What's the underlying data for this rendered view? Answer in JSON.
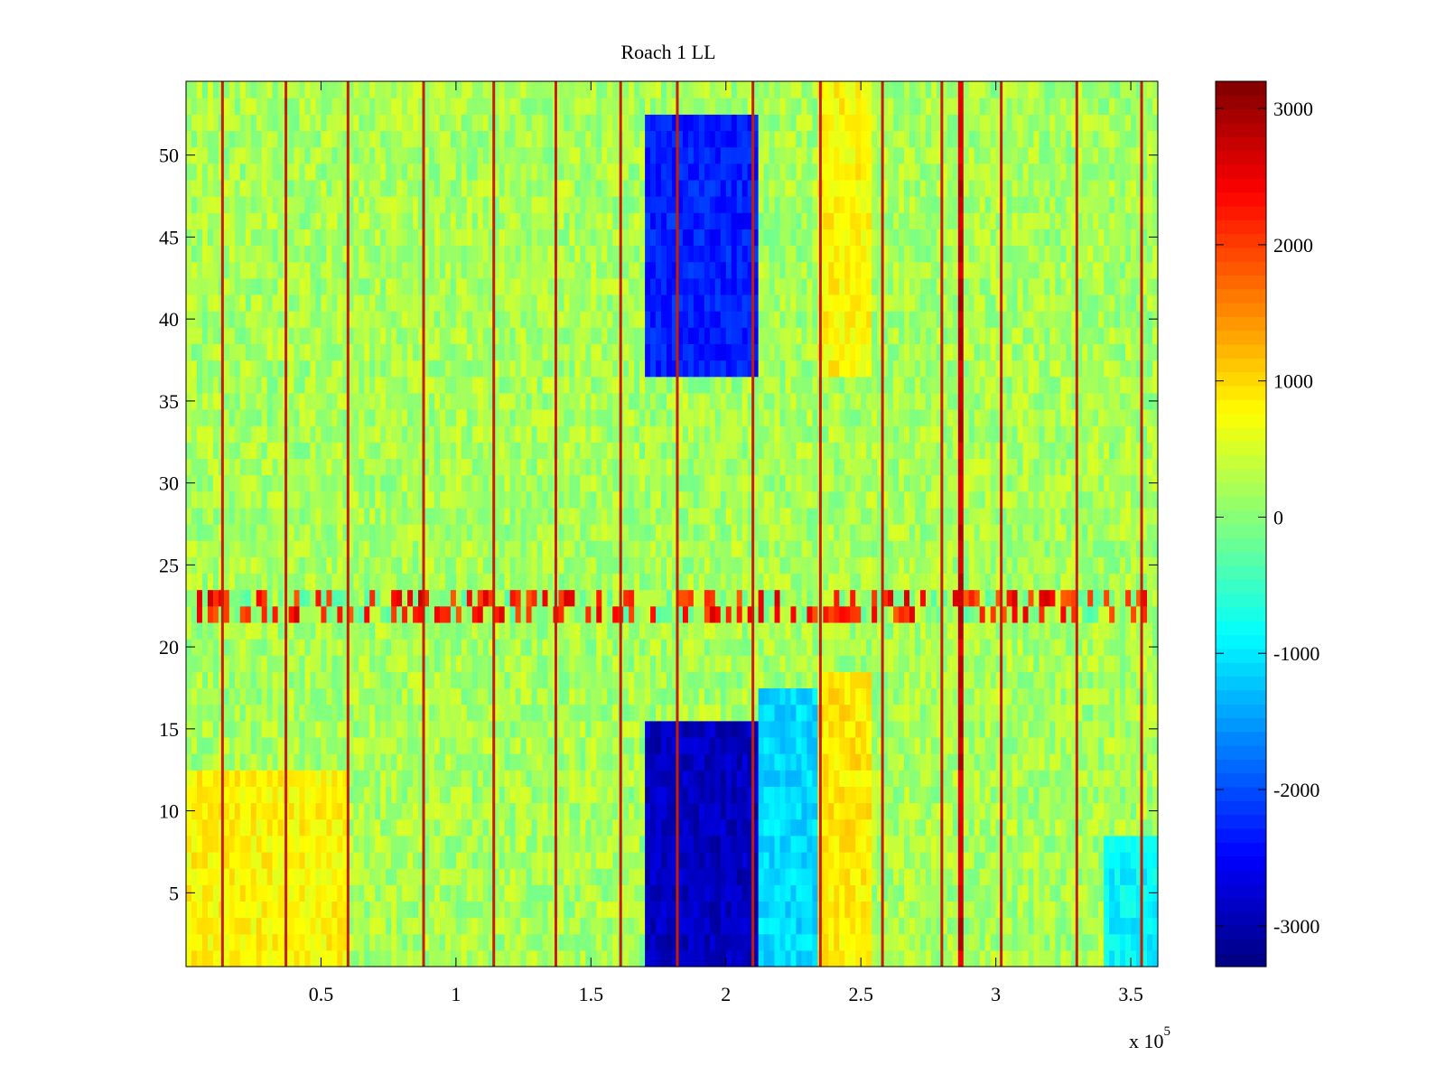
{
  "chart_data": {
    "type": "heatmap",
    "title": "Roach 1 LL",
    "xlabel": "",
    "ylabel": "",
    "x_exponent_label": "x 10",
    "x_exponent_power": "5",
    "xlim": [
      0,
      3.6
    ],
    "ylim": [
      0.5,
      54.5
    ],
    "x_ticks": [
      0.5,
      1,
      1.5,
      2,
      2.5,
      3,
      3.5
    ],
    "x_tick_labels": [
      "0.5",
      "1",
      "1.5",
      "2",
      "2.5",
      "3",
      "3.5"
    ],
    "y_ticks": [
      5,
      10,
      15,
      20,
      25,
      30,
      35,
      40,
      45,
      50
    ],
    "y_tick_labels": [
      "5",
      "10",
      "15",
      "20",
      "25",
      "30",
      "35",
      "40",
      "45",
      "50"
    ],
    "rows": 54,
    "colormap": "jet",
    "colorbar": {
      "clim": [
        -3300,
        3200
      ],
      "ticks": [
        3000,
        2000,
        1000,
        0,
        -1000,
        -2000,
        -3000
      ],
      "tick_labels": [
        "3000",
        "2000",
        "1000",
        "0",
        "-1000",
        "-2000",
        "-3000"
      ]
    },
    "background_level": 200,
    "strong_rows": {
      "from": 21.5,
      "to": 23.5,
      "level": 1800
    },
    "spike_columns_x": [
      0.135,
      0.37,
      0.6,
      0.88,
      1.14,
      1.37,
      1.61,
      1.82,
      2.1,
      2.35,
      2.58,
      2.8,
      3.02,
      3.3,
      3.54
    ],
    "regions": [
      {
        "x": [
          1.7,
          2.12
        ],
        "y": [
          0.5,
          15.5
        ],
        "level": -2900
      },
      {
        "x": [
          1.7,
          2.12
        ],
        "y": [
          36.5,
          52.5
        ],
        "level": -2300
      },
      {
        "x": [
          2.12,
          2.36
        ],
        "y": [
          0.5,
          17.5
        ],
        "level": -1100
      },
      {
        "x": [
          2.35,
          2.55
        ],
        "y": [
          0.5,
          18.5
        ],
        "level": 900
      },
      {
        "x": [
          2.35,
          2.55
        ],
        "y": [
          36.5,
          54.5
        ],
        "level": 800
      },
      {
        "x": [
          2.86,
          2.89
        ],
        "y": [
          0.5,
          54.5
        ],
        "level": 2700
      },
      {
        "x": [
          0.0,
          0.6
        ],
        "y": [
          0.5,
          12.5
        ],
        "level": 800
      },
      {
        "x": [
          3.4,
          3.6
        ],
        "y": [
          0.5,
          8.5
        ],
        "level": -900
      }
    ]
  }
}
